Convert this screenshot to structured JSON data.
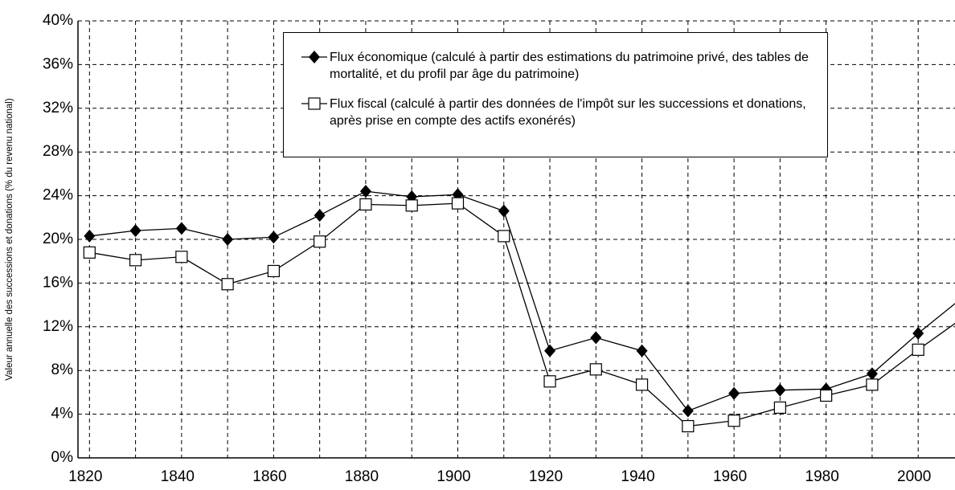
{
  "chart_data": {
    "type": "line",
    "y_label": "Valeur annuelle des successions et donations (% du revenu national)",
    "x": [
      1820,
      1830,
      1840,
      1850,
      1860,
      1870,
      1880,
      1890,
      1900,
      1910,
      1920,
      1930,
      1940,
      1950,
      1960,
      1970,
      1980,
      1990,
      2000,
      2010
    ],
    "series": [
      {
        "name": "Flux économique (calculé à partir des estimations du patrimoine privé, des tables de mortalité, et du profil par âge du patrimoine)",
        "color": "#000000",
        "marker": "diamond",
        "values": [
          20.3,
          20.8,
          21.0,
          20.0,
          20.2,
          22.2,
          24.4,
          23.9,
          24.1,
          22.6,
          9.8,
          11.0,
          9.8,
          4.3,
          5.9,
          6.2,
          6.3,
          7.7,
          11.4,
          14.8
        ]
      },
      {
        "name": "Flux fiscal (calculé à partir des données de l'impôt sur les successions et donations, après prise en compte des actifs exonérés)",
        "color": "#000000",
        "marker": "square",
        "values": [
          18.8,
          18.1,
          18.4,
          15.9,
          17.1,
          19.8,
          23.2,
          23.1,
          23.3,
          20.3,
          7.0,
          8.1,
          6.7,
          2.9,
          3.4,
          4.6,
          5.7,
          6.7,
          9.9,
          12.9
        ]
      }
    ],
    "xlim": [
      1817.5,
      2008
    ],
    "xticks": [
      1820,
      1840,
      1860,
      1880,
      1900,
      1920,
      1940,
      1960,
      1980,
      2000
    ],
    "xminorticks": [
      1830,
      1850,
      1870,
      1890,
      1910,
      1930,
      1950,
      1970,
      1990
    ],
    "ylim": [
      0,
      40
    ],
    "yticks": [
      {
        "value": 0,
        "label": "0%"
      },
      {
        "value": 4,
        "label": "4%"
      },
      {
        "value": 8,
        "label": "8%"
      },
      {
        "value": 12,
        "label": "12%"
      },
      {
        "value": 16,
        "label": "16%"
      },
      {
        "value": 20,
        "label": "20%"
      },
      {
        "value": 24,
        "label": "24%"
      },
      {
        "value": 28,
        "label": "28%"
      },
      {
        "value": 32,
        "label": "32%"
      },
      {
        "value": 36,
        "label": "36%"
      },
      {
        "value": 40,
        "label": "40%"
      }
    ],
    "grid": true,
    "legend": "top-center"
  }
}
